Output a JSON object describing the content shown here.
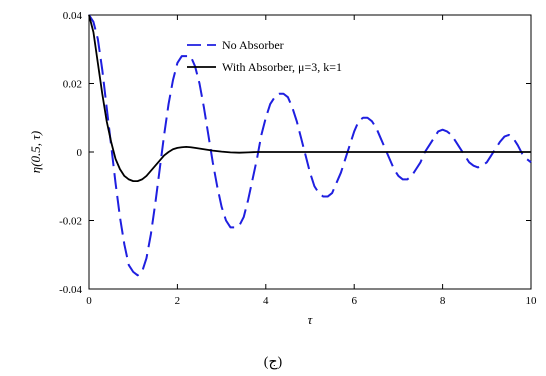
{
  "chart_data": {
    "type": "line",
    "title": "",
    "xlabel": "τ",
    "ylabel": "η(0.5, τ)",
    "xlim": [
      0,
      10
    ],
    "ylim": [
      -0.04,
      0.04
    ],
    "x_ticks": [
      0,
      2,
      4,
      6,
      8,
      10
    ],
    "x_tick_labels": [
      "0",
      "2",
      "4",
      "6",
      "8",
      "10"
    ],
    "y_ticks": [
      -0.04,
      -0.02,
      0,
      0.02,
      0.04
    ],
    "y_tick_labels": [
      "-0.04",
      "-0.02",
      "0",
      "0.02",
      "0.04"
    ],
    "grid": false,
    "legend_position": "top-right",
    "caption": "(ج)",
    "series": [
      {
        "name": "No Absorber",
        "style": "dashed",
        "color": "#1f1fe0",
        "points": [
          [
            0.0,
            0.04
          ],
          [
            0.1,
            0.038
          ],
          [
            0.2,
            0.033
          ],
          [
            0.3,
            0.024
          ],
          [
            0.4,
            0.013
          ],
          [
            0.5,
            0.002
          ],
          [
            0.6,
            -0.009
          ],
          [
            0.7,
            -0.019
          ],
          [
            0.8,
            -0.027
          ],
          [
            0.9,
            -0.033
          ],
          [
            1.0,
            -0.035
          ],
          [
            1.1,
            -0.036
          ],
          [
            1.2,
            -0.035
          ],
          [
            1.3,
            -0.031
          ],
          [
            1.4,
            -0.024
          ],
          [
            1.5,
            -0.015
          ],
          [
            1.6,
            -0.005
          ],
          [
            1.7,
            0.005
          ],
          [
            1.8,
            0.014
          ],
          [
            1.9,
            0.021
          ],
          [
            2.0,
            0.026
          ],
          [
            2.1,
            0.028
          ],
          [
            2.2,
            0.028
          ],
          [
            2.3,
            0.028
          ],
          [
            2.4,
            0.025
          ],
          [
            2.5,
            0.02
          ],
          [
            2.6,
            0.013
          ],
          [
            2.7,
            0.005
          ],
          [
            2.8,
            -0.003
          ],
          [
            2.9,
            -0.01
          ],
          [
            3.0,
            -0.016
          ],
          [
            3.1,
            -0.02
          ],
          [
            3.2,
            -0.022
          ],
          [
            3.3,
            -0.022
          ],
          [
            3.4,
            -0.0215
          ],
          [
            3.5,
            -0.019
          ],
          [
            3.6,
            -0.014
          ],
          [
            3.7,
            -0.008
          ],
          [
            3.8,
            -0.002
          ],
          [
            3.9,
            0.005
          ],
          [
            4.0,
            0.01
          ],
          [
            4.1,
            0.014
          ],
          [
            4.2,
            0.016
          ],
          [
            4.3,
            0.017
          ],
          [
            4.4,
            0.017
          ],
          [
            4.5,
            0.016
          ],
          [
            4.6,
            0.013
          ],
          [
            4.7,
            0.009
          ],
          [
            4.8,
            0.004
          ],
          [
            4.9,
            -0.001
          ],
          [
            5.0,
            -0.006
          ],
          [
            5.1,
            -0.01
          ],
          [
            5.2,
            -0.012
          ],
          [
            5.3,
            -0.013
          ],
          [
            5.4,
            -0.013
          ],
          [
            5.5,
            -0.012
          ],
          [
            5.6,
            -0.009
          ],
          [
            5.7,
            -0.006
          ],
          [
            5.8,
            -0.002
          ],
          [
            5.9,
            0.002
          ],
          [
            6.0,
            0.006
          ],
          [
            6.1,
            0.009
          ],
          [
            6.2,
            0.01
          ],
          [
            6.3,
            0.01
          ],
          [
            6.4,
            0.009
          ],
          [
            6.5,
            0.007
          ],
          [
            6.6,
            0.004
          ],
          [
            6.7,
            0.001
          ],
          [
            6.8,
            -0.002
          ],
          [
            6.9,
            -0.005
          ],
          [
            7.0,
            -0.007
          ],
          [
            7.1,
            -0.008
          ],
          [
            7.2,
            -0.008
          ],
          [
            7.3,
            -0.007
          ],
          [
            7.4,
            -0.005
          ],
          [
            7.5,
            -0.003
          ],
          [
            7.6,
            0.0
          ],
          [
            7.7,
            0.002
          ],
          [
            7.8,
            0.004
          ],
          [
            7.9,
            0.006
          ],
          [
            8.0,
            0.0065
          ],
          [
            8.1,
            0.006
          ],
          [
            8.2,
            0.005
          ],
          [
            8.3,
            0.003
          ],
          [
            8.4,
            0.001
          ],
          [
            8.5,
            -0.001
          ],
          [
            8.6,
            -0.003
          ],
          [
            8.7,
            -0.004
          ],
          [
            8.8,
            -0.0045
          ],
          [
            8.9,
            -0.004
          ],
          [
            9.0,
            -0.003
          ],
          [
            9.1,
            -0.001
          ],
          [
            9.2,
            0.001
          ],
          [
            9.3,
            0.003
          ],
          [
            9.4,
            0.0045
          ],
          [
            9.5,
            0.005
          ],
          [
            9.6,
            0.004
          ],
          [
            9.7,
            0.002
          ],
          [
            9.8,
            -0.0005
          ],
          [
            9.9,
            -0.002
          ],
          [
            10.0,
            -0.003
          ]
        ]
      },
      {
        "name": "With Absorber, μ=3, k=1",
        "style": "solid",
        "color": "#000000",
        "points": [
          [
            0.0,
            0.04
          ],
          [
            0.1,
            0.035
          ],
          [
            0.2,
            0.026
          ],
          [
            0.3,
            0.017
          ],
          [
            0.4,
            0.009
          ],
          [
            0.5,
            0.003
          ],
          [
            0.6,
            -0.002
          ],
          [
            0.7,
            -0.005
          ],
          [
            0.8,
            -0.007
          ],
          [
            0.9,
            -0.008
          ],
          [
            1.0,
            -0.0085
          ],
          [
            1.1,
            -0.0085
          ],
          [
            1.2,
            -0.008
          ],
          [
            1.3,
            -0.007
          ],
          [
            1.4,
            -0.0055
          ],
          [
            1.5,
            -0.004
          ],
          [
            1.6,
            -0.0025
          ],
          [
            1.7,
            -0.001
          ],
          [
            1.8,
            0.0
          ],
          [
            1.9,
            0.0008
          ],
          [
            2.0,
            0.0012
          ],
          [
            2.1,
            0.0014
          ],
          [
            2.2,
            0.0015
          ],
          [
            2.3,
            0.0014
          ],
          [
            2.4,
            0.0012
          ],
          [
            2.6,
            0.0008
          ],
          [
            2.8,
            0.0004
          ],
          [
            3.0,
            0.0001
          ],
          [
            3.2,
            -0.0001
          ],
          [
            3.4,
            -0.0002
          ],
          [
            3.6,
            -0.0001
          ],
          [
            3.8,
            0.0
          ],
          [
            4.0,
            0.0
          ],
          [
            5.0,
            0.0
          ],
          [
            6.0,
            0.0
          ],
          [
            7.0,
            0.0
          ],
          [
            8.0,
            0.0
          ],
          [
            9.0,
            0.0
          ],
          [
            10.0,
            0.0
          ]
        ]
      }
    ]
  }
}
